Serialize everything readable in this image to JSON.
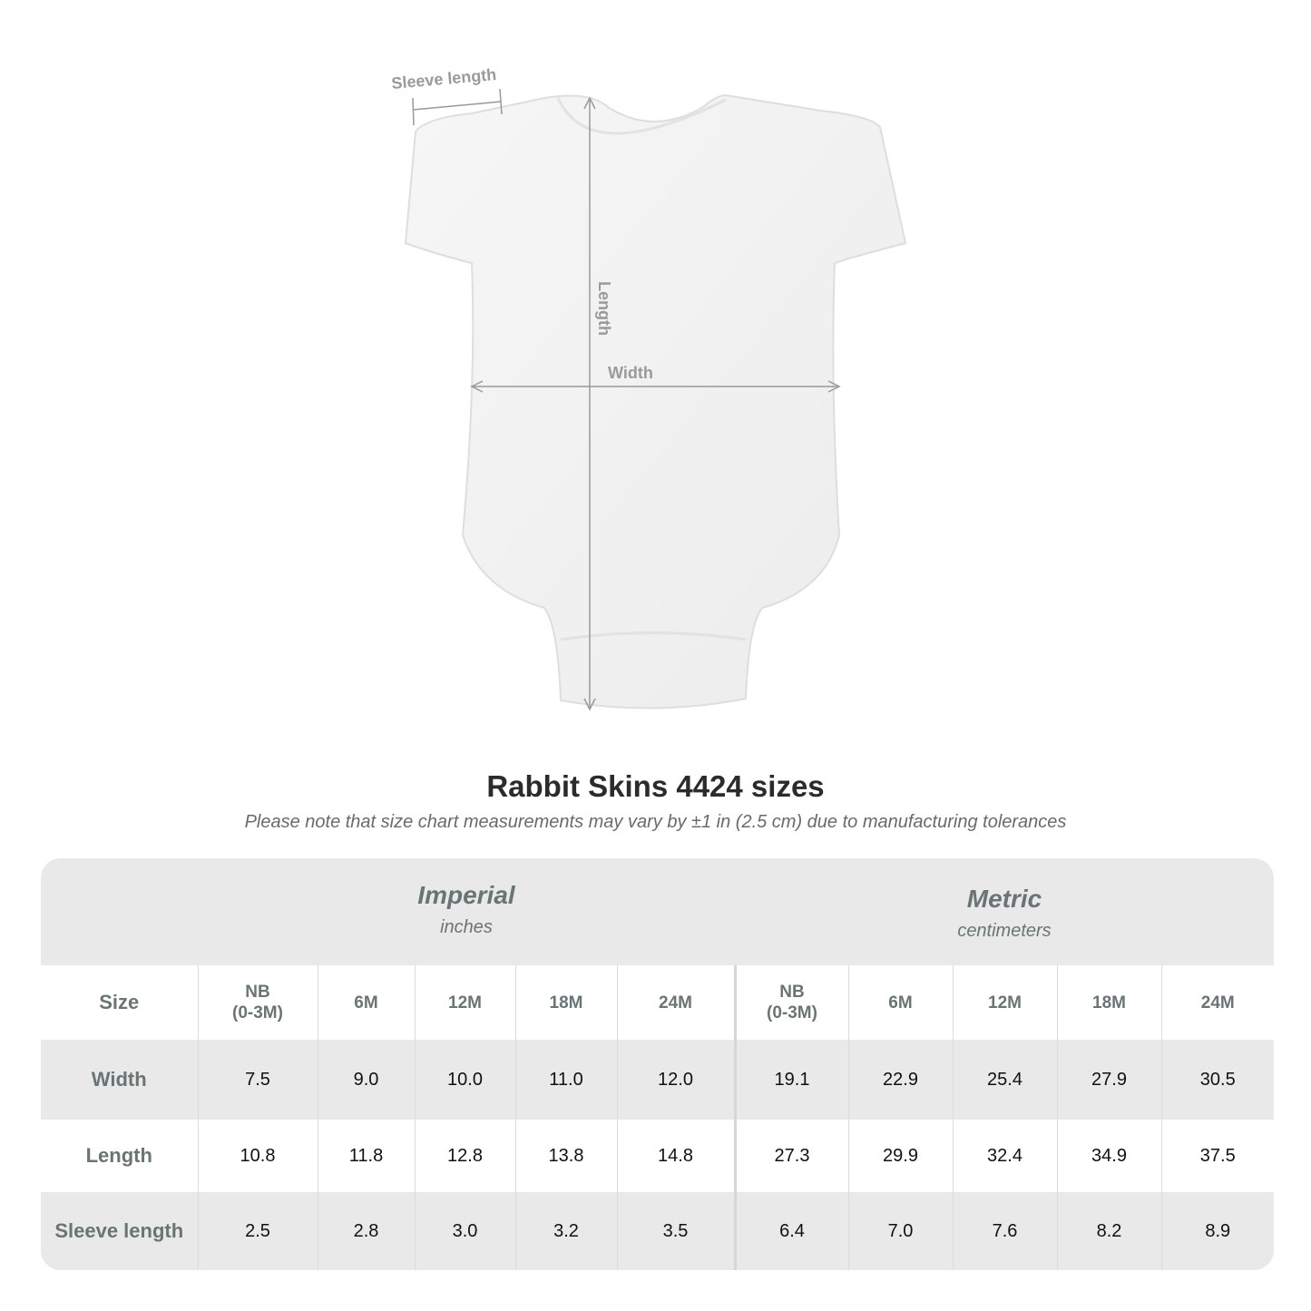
{
  "annotations": {
    "sleeve_length": "Sleeve length",
    "length": "Length",
    "width": "Width"
  },
  "title": "Rabbit Skins 4424 sizes",
  "subtitle": "Please note that size chart measurements may vary by ±1 in (2.5 cm) due to manufacturing tolerances",
  "imperial": {
    "name": "Imperial",
    "unit": "inches"
  },
  "metric": {
    "name": "Metric",
    "unit": "centimeters"
  },
  "table": {
    "size_label": "Size",
    "sizes": [
      "NB\n(0-3M)",
      "6M",
      "12M",
      "18M",
      "24M"
    ],
    "rows": [
      {
        "label": "Width",
        "imperial": [
          "7.5",
          "9.0",
          "10.0",
          "11.0",
          "12.0"
        ],
        "metric": [
          "19.1",
          "22.9",
          "25.4",
          "27.9",
          "30.5"
        ]
      },
      {
        "label": "Length",
        "imperial": [
          "10.8",
          "11.8",
          "12.8",
          "13.8",
          "14.8"
        ],
        "metric": [
          "27.3",
          "29.9",
          "32.4",
          "34.9",
          "37.5"
        ]
      },
      {
        "label": "Sleeve length",
        "imperial": [
          "2.5",
          "2.8",
          "3.0",
          "3.2",
          "3.5"
        ],
        "metric": [
          "6.4",
          "7.0",
          "7.6",
          "8.2",
          "8.9"
        ]
      }
    ]
  },
  "colors": {
    "header_bg": "#e9e9e9",
    "label_text": "#6b7474",
    "annotation": "#9a9a9a"
  }
}
